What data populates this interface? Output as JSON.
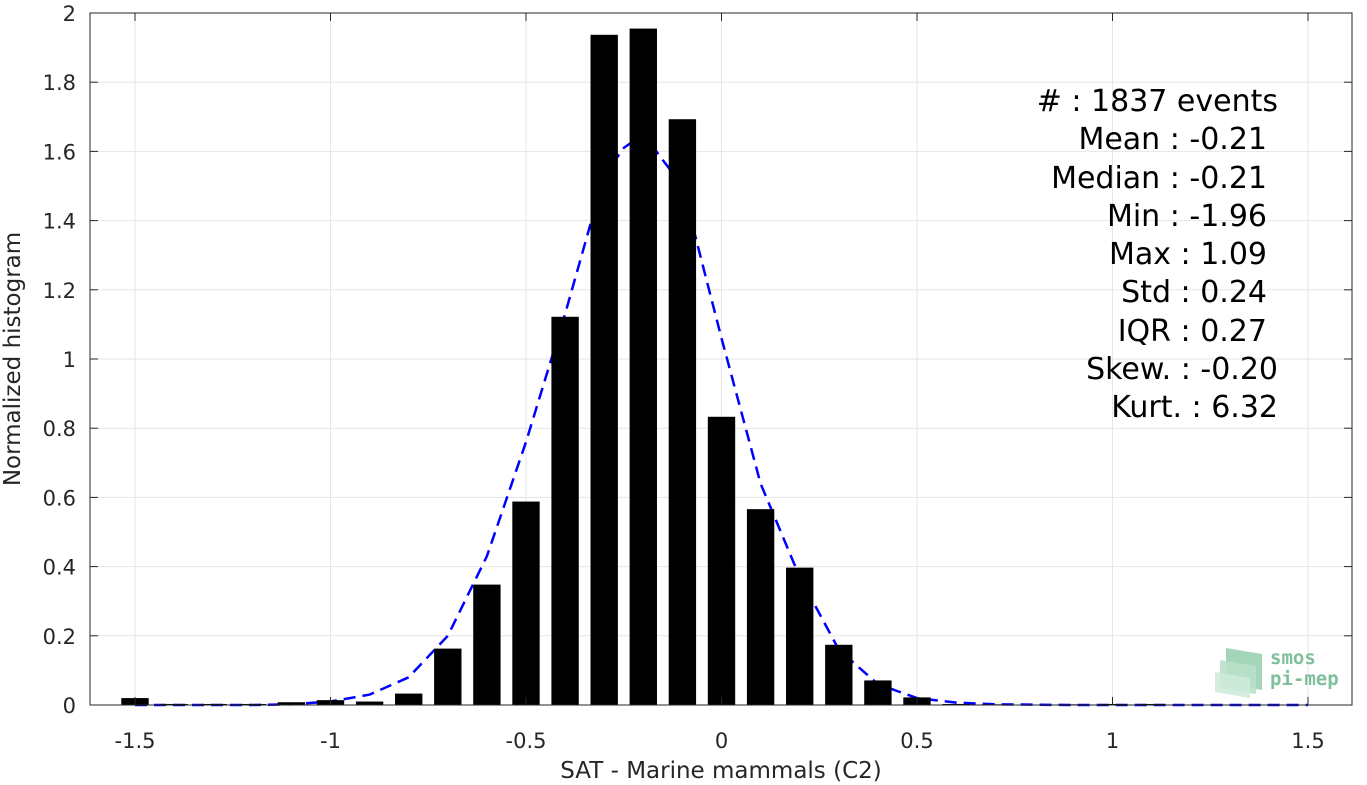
{
  "chart_data": {
    "type": "bar",
    "xlabel": "SAT - Marine mammals (C2)",
    "ylabel": "Normalized histogram",
    "xlim": [
      -1.55,
      1.55
    ],
    "ylim": [
      0,
      2
    ],
    "grid": true,
    "x_ticks": [
      -1.5,
      -1,
      -0.5,
      0,
      0.5,
      1,
      1.5
    ],
    "x_tick_labels": [
      "-1.5",
      "-1",
      "-0.5",
      "0",
      "0.5",
      "1",
      "1.5"
    ],
    "y_ticks": [
      0,
      0.2,
      0.4,
      0.6,
      0.8,
      1,
      1.2,
      1.4,
      1.6,
      1.8,
      2
    ],
    "y_tick_labels": [
      "0",
      "0.2",
      "0.4",
      "0.6",
      "0.8",
      "1",
      "1.2",
      "1.4",
      "1.6",
      "1.8",
      "2"
    ],
    "bar_color": "#000000",
    "bins": [
      {
        "x": -1.5,
        "value": 0.02
      },
      {
        "x": -1.4,
        "value": 0.003
      },
      {
        "x": -1.3,
        "value": 0.003
      },
      {
        "x": -1.2,
        "value": 0.003
      },
      {
        "x": -1.1,
        "value": 0.008
      },
      {
        "x": -1.0,
        "value": 0.014
      },
      {
        "x": -0.9,
        "value": 0.01
      },
      {
        "x": -0.8,
        "value": 0.033
      },
      {
        "x": -0.7,
        "value": 0.163
      },
      {
        "x": -0.6,
        "value": 0.348
      },
      {
        "x": -0.5,
        "value": 0.588
      },
      {
        "x": -0.4,
        "value": 1.122
      },
      {
        "x": -0.3,
        "value": 1.937
      },
      {
        "x": -0.2,
        "value": 1.955
      },
      {
        "x": -0.1,
        "value": 1.693
      },
      {
        "x": 0.0,
        "value": 0.833
      },
      {
        "x": 0.1,
        "value": 0.566
      },
      {
        "x": 0.2,
        "value": 0.397
      },
      {
        "x": 0.3,
        "value": 0.174
      },
      {
        "x": 0.4,
        "value": 0.071
      },
      {
        "x": 0.5,
        "value": 0.022
      },
      {
        "x": 0.6,
        "value": 0.003
      },
      {
        "x": 0.7,
        "value": 0.002
      },
      {
        "x": 0.8,
        "value": 0.001
      },
      {
        "x": 0.9,
        "value": 0.002
      },
      {
        "x": 1.0,
        "value": 0.003
      },
      {
        "x": 1.1,
        "value": 0.003
      }
    ],
    "fit_curve": {
      "style": "dashed",
      "color": "#0000ff",
      "x": [
        -1.5,
        -1.4,
        -1.3,
        -1.2,
        -1.1,
        -1.0,
        -0.9,
        -0.8,
        -0.7,
        -0.6,
        -0.5,
        -0.4,
        -0.3,
        -0.25,
        -0.2,
        -0.1,
        0.0,
        0.1,
        0.2,
        0.3,
        0.4,
        0.5,
        0.6,
        0.7,
        0.8,
        0.9,
        1.0,
        1.1,
        1.2,
        1.3,
        1.4,
        1.5
      ],
      "y": [
        0.0,
        0.0,
        0.0,
        0.0,
        0.002,
        0.01,
        0.03,
        0.08,
        0.2,
        0.43,
        0.76,
        1.13,
        1.53,
        1.61,
        1.65,
        1.5,
        1.06,
        0.64,
        0.37,
        0.16,
        0.06,
        0.02,
        0.007,
        0.002,
        0.001,
        0.0,
        0.0,
        0.0,
        0.0,
        0.0,
        0.0,
        0.0
      ]
    },
    "annotations": [
      "#  : 1837 events",
      "Mean : -0.21",
      "Median : -0.21",
      "Min : -1.96",
      "Max : 1.09",
      "Std : 0.24",
      "IQR : 0.27",
      "Skew. : -0.20",
      "Kurt. : 6.32"
    ]
  },
  "logo": {
    "line1": "smos",
    "line2": "pi-mep",
    "color": "#7fbf9b"
  }
}
